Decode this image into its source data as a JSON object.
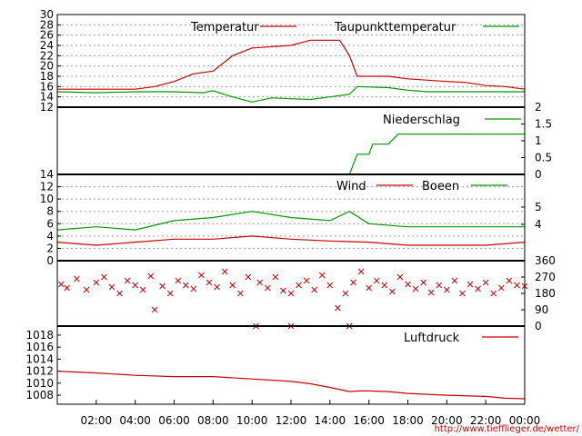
{
  "credit": "http://www.tiefflieger.de/wetter/",
  "colors": {
    "red": "#cc0000",
    "green": "#009900",
    "frame": "#000000",
    "grid": "#9a9a9a"
  },
  "x_ticks": [
    "02:00",
    "04:00",
    "06:00",
    "08:00",
    "10:00",
    "12:00",
    "14:00",
    "16:00",
    "18:00",
    "20:00",
    "22:00",
    "00:00"
  ],
  "chart_data": [
    {
      "type": "line",
      "panel": "temperature",
      "y_ticks": [
        "12",
        "14",
        "16",
        "18",
        "20",
        "22",
        "24",
        "26",
        "28",
        "30"
      ],
      "ylim": [
        12,
        30
      ],
      "x_range_hours": [
        0,
        24
      ],
      "grid": true,
      "legend": "top",
      "series": [
        {
          "name": "Temperatur",
          "color": "#cc0000",
          "points": [
            [
              0,
              15.5
            ],
            [
              4,
              15.5
            ],
            [
              5,
              16
            ],
            [
              6,
              17
            ],
            [
              7,
              18.5
            ],
            [
              8,
              19
            ],
            [
              9,
              22
            ],
            [
              10,
              23.5
            ],
            [
              12,
              24
            ],
            [
              13,
              25
            ],
            [
              14.5,
              25
            ],
            [
              15,
              22
            ],
            [
              15.4,
              18
            ],
            [
              17,
              18
            ],
            [
              18,
              17.5
            ],
            [
              20,
              17
            ],
            [
              21,
              16.8
            ],
            [
              22,
              16.2
            ],
            [
              23,
              16
            ],
            [
              24,
              15.5
            ]
          ]
        },
        {
          "name": "Taupunkttemperatur",
          "color": "#009900",
          "points": [
            [
              0,
              15
            ],
            [
              2,
              14.8
            ],
            [
              4,
              15
            ],
            [
              6,
              15
            ],
            [
              7.5,
              14.8
            ],
            [
              8,
              15.2
            ],
            [
              9,
              14
            ],
            [
              10,
              13
            ],
            [
              11,
              13.8
            ],
            [
              13,
              13.5
            ],
            [
              14,
              14
            ],
            [
              15,
              14.5
            ],
            [
              15.4,
              16
            ],
            [
              17,
              15.8
            ],
            [
              18,
              15.3
            ],
            [
              19,
              15
            ],
            [
              22,
              15
            ],
            [
              24,
              15
            ]
          ]
        }
      ]
    },
    {
      "type": "line",
      "panel": "precipitation",
      "right_ticks": [
        "0",
        "0.5",
        "1",
        "1.5",
        "2"
      ],
      "ylim": [
        0,
        2
      ],
      "legend": "top",
      "series": [
        {
          "name": "Niederschlag",
          "color": "#009900",
          "points": [
            [
              0,
              0
            ],
            [
              15,
              0
            ],
            [
              15.4,
              0.6
            ],
            [
              16,
              0.6
            ],
            [
              16.2,
              0.9
            ],
            [
              17,
              0.9
            ],
            [
              17.5,
              1.2
            ],
            [
              24,
              1.2
            ]
          ]
        }
      ]
    },
    {
      "type": "line",
      "panel": "wind",
      "y_ticks": [
        "0",
        "2",
        "4",
        "6",
        "8",
        "10",
        "12",
        "14"
      ],
      "right_ticks": [
        "4",
        "5"
      ],
      "ylim": [
        0,
        14
      ],
      "grid": true,
      "legend": "top",
      "series": [
        {
          "name": "Wind",
          "color": "#cc0000",
          "points": [
            [
              0,
              3
            ],
            [
              2,
              2.5
            ],
            [
              4,
              3
            ],
            [
              6,
              3.5
            ],
            [
              8,
              3.5
            ],
            [
              10,
              4
            ],
            [
              12,
              3.5
            ],
            [
              14,
              3.2
            ],
            [
              16,
              3
            ],
            [
              18,
              2.5
            ],
            [
              20,
              2.5
            ],
            [
              22,
              2.5
            ],
            [
              24,
              3
            ]
          ]
        },
        {
          "name": "Boeen",
          "color": "#009900",
          "points": [
            [
              0,
              5
            ],
            [
              2,
              5.5
            ],
            [
              4,
              5
            ],
            [
              6,
              6.5
            ],
            [
              8,
              7
            ],
            [
              10,
              8
            ],
            [
              12,
              7
            ],
            [
              14,
              6.5
            ],
            [
              15,
              8
            ],
            [
              16,
              6
            ],
            [
              18,
              5.5
            ],
            [
              20,
              5.5
            ],
            [
              22,
              5.5
            ],
            [
              24,
              5.5
            ]
          ]
        }
      ]
    },
    {
      "type": "scatter",
      "panel": "wind-direction",
      "right_ticks": [
        "0",
        "90",
        "180",
        "270",
        "360"
      ],
      "ylim": [
        0,
        360
      ],
      "grid": false,
      "series": [
        {
          "color": "#cc0000",
          "typical_deg": 225,
          "points": [
            [
              0.2,
              230
            ],
            [
              0.5,
              210
            ],
            [
              1,
              260
            ],
            [
              1.5,
              200
            ],
            [
              2,
              240
            ],
            [
              2.4,
              270
            ],
            [
              2.8,
              215
            ],
            [
              3.2,
              180
            ],
            [
              3.6,
              250
            ],
            [
              4,
              225
            ],
            [
              4.4,
              200
            ],
            [
              4.8,
              275
            ],
            [
              5,
              90
            ],
            [
              5.4,
              220
            ],
            [
              5.8,
              180
            ],
            [
              6.2,
              250
            ],
            [
              6.6,
              225
            ],
            [
              7,
              205
            ],
            [
              7.4,
              280
            ],
            [
              7.8,
              240
            ],
            [
              8.2,
              215
            ],
            [
              8.6,
              300
            ],
            [
              9,
              225
            ],
            [
              9.4,
              180
            ],
            [
              9.8,
              270
            ],
            [
              10.2,
              0
            ],
            [
              10.4,
              240
            ],
            [
              10.8,
              210
            ],
            [
              11.2,
              270
            ],
            [
              11.6,
              195
            ],
            [
              12,
              180
            ],
            [
              12,
              0
            ],
            [
              12.4,
              225
            ],
            [
              12.8,
              250
            ],
            [
              13.2,
              200
            ],
            [
              13.6,
              280
            ],
            [
              14,
              225
            ],
            [
              14.4,
              100
            ],
            [
              14.8,
              180
            ],
            [
              15,
              0
            ],
            [
              15.2,
              240
            ],
            [
              15.6,
              300
            ],
            [
              16,
              210
            ],
            [
              16.4,
              250
            ],
            [
              16.8,
              225
            ],
            [
              17.2,
              190
            ],
            [
              17.6,
              270
            ],
            [
              18,
              230
            ],
            [
              18.4,
              205
            ],
            [
              18.8,
              240
            ],
            [
              19.2,
              185
            ],
            [
              19.6,
              225
            ],
            [
              20,
              200
            ],
            [
              20.4,
              250
            ],
            [
              20.8,
              180
            ],
            [
              21.2,
              230
            ],
            [
              21.6,
              205
            ],
            [
              22,
              240
            ],
            [
              22.4,
              180
            ],
            [
              22.8,
              210
            ],
            [
              23.2,
              250
            ],
            [
              23.6,
              225
            ],
            [
              24,
              220
            ]
          ]
        }
      ]
    },
    {
      "type": "line",
      "panel": "pressure",
      "y_ticks": [
        "1008",
        "1010",
        "1012",
        "1014",
        "1016",
        "1018"
      ],
      "ylim": [
        1006.5,
        1019.5
      ],
      "legend": "top",
      "series": [
        {
          "name": "Luftdruck",
          "color": "#cc0000",
          "points": [
            [
              0,
              1012
            ],
            [
              2,
              1011.7
            ],
            [
              4,
              1011.3
            ],
            [
              6,
              1011.1
            ],
            [
              8,
              1011.1
            ],
            [
              10,
              1010.7
            ],
            [
              12,
              1010.3
            ],
            [
              13,
              1009.9
            ],
            [
              14,
              1009.3
            ],
            [
              15,
              1008.6
            ],
            [
              15.5,
              1008.7
            ],
            [
              16,
              1008.7
            ],
            [
              17,
              1008.6
            ],
            [
              18,
              1008.3
            ],
            [
              20,
              1008.0
            ],
            [
              22,
              1007.8
            ],
            [
              23,
              1007.5
            ],
            [
              24,
              1007.4
            ]
          ]
        }
      ]
    }
  ]
}
